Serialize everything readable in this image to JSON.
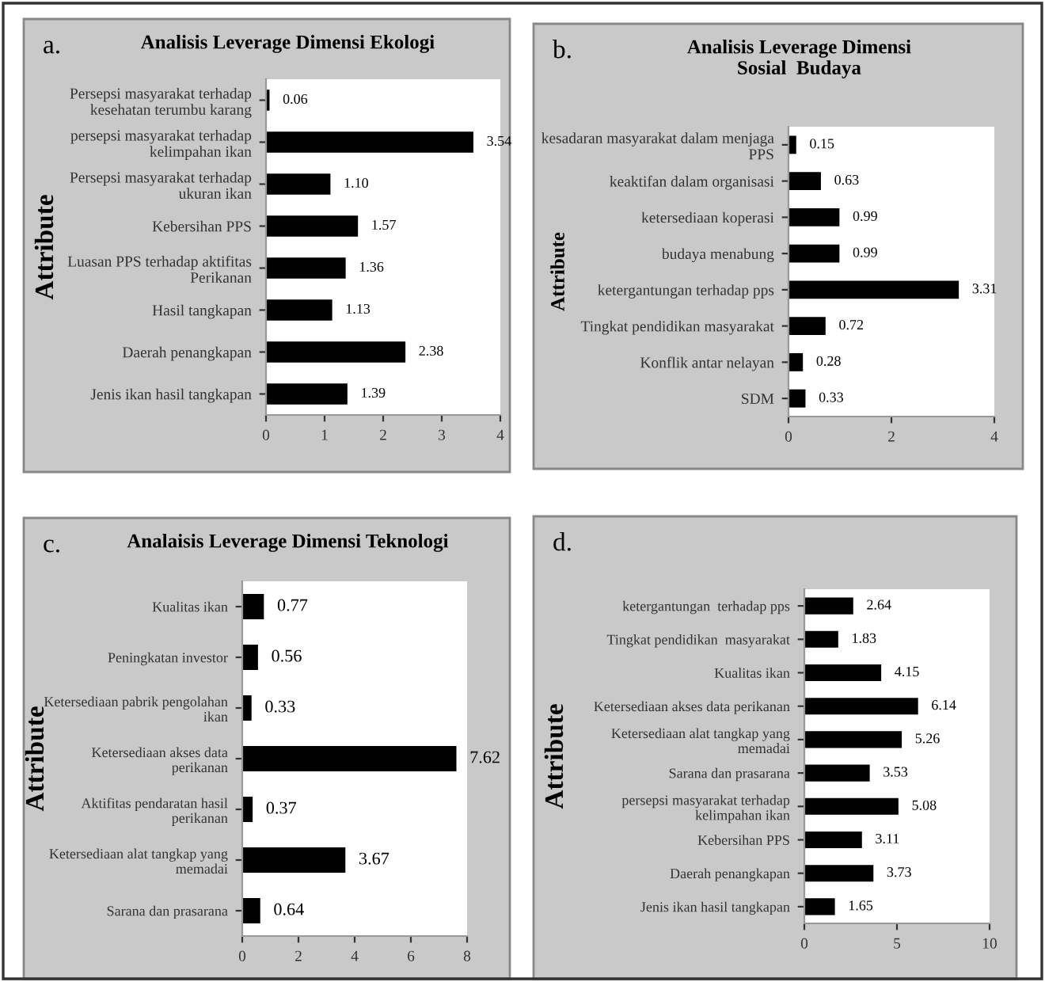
{
  "chart_data": [
    {
      "type": "bar",
      "orientation": "horizontal",
      "title": "Analisis Leverage Dimensi Ekologi",
      "annotations": [
        "a."
      ],
      "ylabel": "Attribute",
      "categories": [
        "Persepsi masyarakat terhadap\nkesehatan terumbu karang",
        "persepsi masyarakat terhadap\nkelimpahan ikan",
        "Persepsi masyarakat terhadap\nukuran ikan",
        "Kebersihan PPS",
        "Luasan PPS terhadap aktifitas\nPerikanan",
        "Hasil tangkapan",
        "Daerah penangkapan",
        "Jenis ikan hasil tangkapan"
      ],
      "values": [
        0.06,
        3.54,
        1.1,
        1.57,
        1.36,
        1.13,
        2.38,
        1.39
      ],
      "value_labels": [
        "0.06",
        "3.54",
        "1.10",
        "1.57",
        "1.36",
        "1.13",
        "2.38",
        "1.39"
      ],
      "color": "#000000",
      "xlim": [
        0,
        4
      ],
      "xticks": [
        0,
        1,
        2,
        3,
        4
      ],
      "grid": false
    },
    {
      "type": "bar",
      "orientation": "horizontal",
      "title": "Analisis Leverage Dimensi\nSosial  Budaya",
      "annotations": [
        "b."
      ],
      "ylabel": "Attribute",
      "categories": [
        "kesadaran masyarakat dalam menjaga\nPPS",
        "keaktifan dalam organisasi",
        "ketersediaan koperasi",
        "budaya menabung",
        "ketergantungan terhadap pps",
        "Tingkat pendidikan masyarakat",
        "Konflik antar nelayan",
        "SDM"
      ],
      "values": [
        0.15,
        0.63,
        0.99,
        0.99,
        3.31,
        0.72,
        0.28,
        0.33
      ],
      "data_labels": true,
      "color": "#000000",
      "xlim": [
        0,
        4
      ],
      "xticks": [
        0,
        2,
        4
      ],
      "grid": false
    },
    {
      "type": "bar",
      "orientation": "horizontal",
      "title": "Analaisis Leverage Dimensi Teknologi",
      "annotations": [
        "c."
      ],
      "ylabel": "Attribute",
      "categories": [
        "Kualitas ikan",
        "Peningkatan investor",
        "Ketersediaan pabrik pengolahan\nikan",
        "Ketersediaan akses data\nperikanan",
        "Aktifitas pendaratan hasil\nperikanan",
        "Ketersediaan alat tangkap yang\nmemadai",
        "Sarana dan prasarana"
      ],
      "values": [
        0.77,
        0.56,
        0.33,
        7.62,
        0.37,
        3.67,
        0.64
      ],
      "data_labels": true,
      "color": "#000000",
      "xlim": [
        0,
        8
      ],
      "xticks": [
        0,
        2,
        4,
        6,
        8
      ],
      "grid": false
    },
    {
      "type": "bar",
      "orientation": "horizontal",
      "annotations": [
        "d."
      ],
      "ylabel": "Attribute",
      "categories": [
        "ketergantungan  terhadap pps",
        "Tingkat pendidikan  masyarakat",
        "Kualitas ikan",
        "Ketersediaan akses data perikanan",
        "Ketersediaan alat tangkap yang\nmemadai",
        "Sarana dan prasarana",
        "persepsi masyarakat terhadap\nkelimpahan ikan",
        "Kebersihan PPS",
        "Daerah penangkapan",
        "Jenis ikan hasil tangkapan"
      ],
      "values": [
        2.64,
        1.83,
        4.15,
        6.14,
        5.26,
        3.53,
        5.08,
        3.11,
        3.73,
        1.65
      ],
      "data_labels": true,
      "color": "#000000",
      "xlim": [
        0,
        10
      ],
      "xticks": [
        0,
        5,
        10
      ],
      "grid": false
    }
  ]
}
